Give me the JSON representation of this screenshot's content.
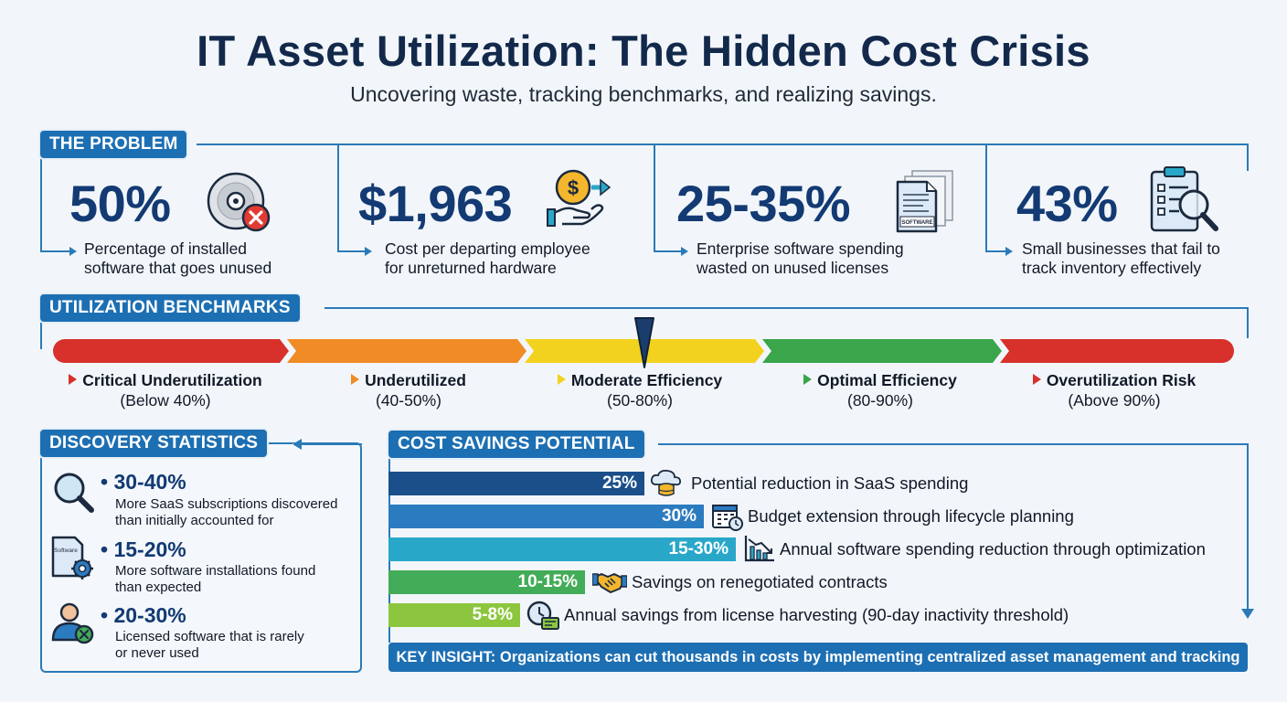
{
  "header": {
    "title": "IT Asset Utilization: The Hidden Cost Crisis",
    "subtitle": "Uncovering waste, tracking benchmarks, and realizing savings."
  },
  "problem": {
    "tag": "THE PROBLEM",
    "stats": [
      {
        "value": "50%",
        "desc_1": "Percentage of installed",
        "desc_2": "software that goes unused",
        "icon": "disc-error-icon"
      },
      {
        "value": "$1,963",
        "desc_1": "Cost per departing employee",
        "desc_2": "for unreturned hardware",
        "icon": "money-hand-icon"
      },
      {
        "value": "25-35%",
        "desc_1": "Enterprise software spending",
        "desc_2": "wasted on unused licenses",
        "icon": "software-docs-icon",
        "icon_text": "SOFTWARE"
      },
      {
        "value": "43%",
        "desc_1": "Small businesses that fail to",
        "desc_2": "track inventory effectively",
        "icon": "clipboard-search-icon"
      }
    ]
  },
  "benchmarks": {
    "tag": "UTILIZATION BENCHMARKS",
    "items": [
      {
        "name": "Critical Underutilization",
        "range": "(Below 40%)",
        "color": "#d8312b"
      },
      {
        "name": "Underutilized",
        "range": "(40-50%)",
        "color": "#f08b25"
      },
      {
        "name": "Moderate Efficiency",
        "range": "(50-80%)",
        "color": "#f3d21f"
      },
      {
        "name": "Optimal Efficiency",
        "range": "(80-90%)",
        "color": "#3aa54a"
      },
      {
        "name": "Overutilization Risk",
        "range": "(Above 90%)",
        "color": "#d8312b"
      }
    ],
    "pointer_level_percent": 60
  },
  "discovery": {
    "tag": "DISCOVERY STATISTICS",
    "items": [
      {
        "value": "30-40%",
        "desc_1": "More SaaS subscriptions discovered",
        "desc_2": "than initially accounted for",
        "icon": "magnifier-icon"
      },
      {
        "value": "15-20%",
        "desc_1": "More software installations found",
        "desc_2": "than expected",
        "icon": "software-gear-icon",
        "icon_text": "Software"
      },
      {
        "value": "20-30%",
        "desc_1": "Licensed software that is rarely",
        "desc_2": "or never used",
        "icon": "user-x-icon"
      }
    ]
  },
  "savings": {
    "tag": "COST SAVINGS POTENTIAL",
    "bars": [
      {
        "value": "25%",
        "label": "Potential reduction in SaaS spending",
        "color": "#1b4f8a",
        "icon": "cloud-database-icon"
      },
      {
        "value": "30%",
        "label": "Budget extension through lifecycle planning",
        "color": "#2b7bc0",
        "icon": "calendar-clock-icon"
      },
      {
        "value": "15-30%",
        "label": "Annual software spending reduction through optimization",
        "color": "#29a7c9",
        "icon": "chart-down-icon"
      },
      {
        "value": "10-15%",
        "label": "Savings on renegotiated contracts",
        "color": "#43ac58",
        "icon": "handshake-icon"
      },
      {
        "value": "5-8%",
        "label": "Annual savings from license harvesting (90-day inactivity threshold)",
        "color": "#8cc63f",
        "icon": "clock-license-icon"
      }
    ],
    "insight": "KEY INSIGHT: Organizations can cut thousands in costs by implementing centralized asset management and tracking"
  }
}
